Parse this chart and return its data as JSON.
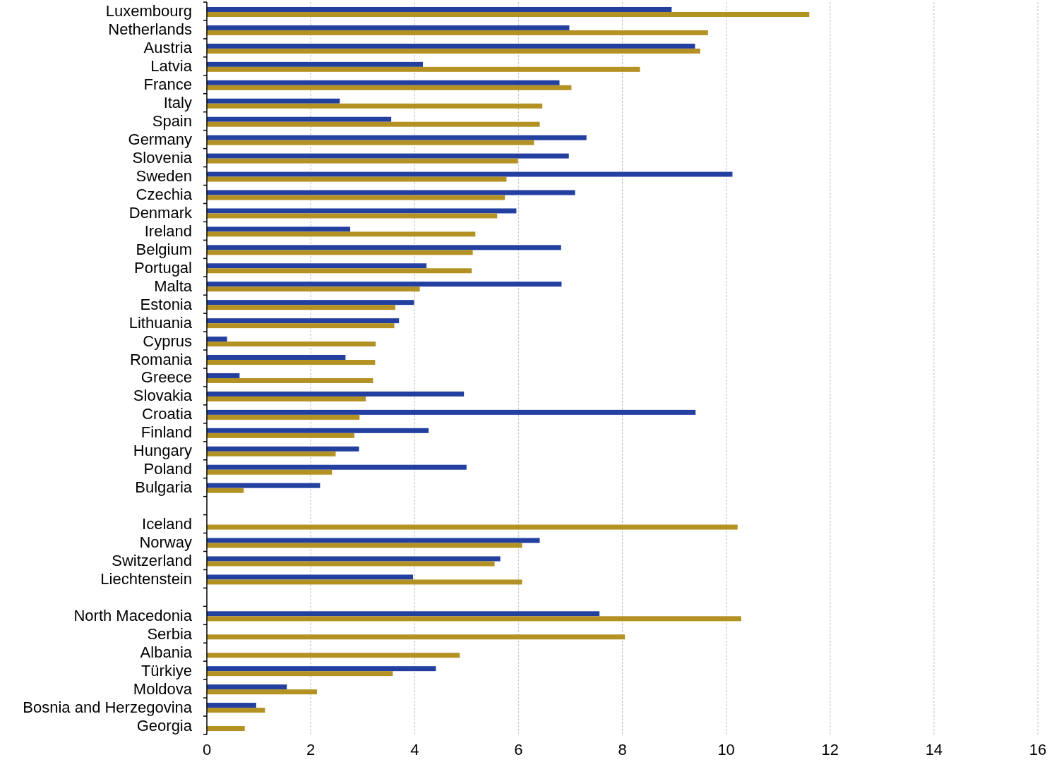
{
  "chart_data": {
    "type": "bar",
    "orientation": "horizontal",
    "categories": [
      "Luxembourg",
      "Netherlands",
      "Austria",
      "Latvia",
      "France",
      "Italy",
      "Spain",
      "Germany",
      "Slovenia",
      "Sweden",
      "Czechia",
      "Denmark",
      "Ireland",
      "Belgium",
      "Portugal",
      "Malta",
      "Estonia",
      "Lithuania",
      "Cyprus",
      "Romania",
      "Greece",
      "Slovakia",
      "Croatia",
      "Finland",
      "Hungary",
      "Poland",
      "Bulgaria",
      null,
      "Iceland",
      "Norway",
      "Switzerland",
      "Liechtenstein",
      null,
      "North Macedonia",
      "Serbia",
      "Albania",
      "Türkiye",
      "Moldova",
      "Bosnia and Herzegovina",
      "Georgia"
    ],
    "series": [
      {
        "color": "#2340a0",
        "values": [
          8.95,
          6.98,
          9.4,
          4.16,
          6.79,
          2.56,
          3.55,
          7.31,
          6.97,
          10.12,
          7.09,
          5.96,
          2.76,
          6.82,
          4.23,
          6.83,
          3.99,
          3.7,
          0.39,
          2.67,
          0.63,
          4.95,
          9.41,
          4.27,
          2.93,
          5.0,
          2.18,
          null,
          null,
          6.41,
          5.65,
          3.97,
          null,
          7.56,
          null,
          null,
          4.41,
          1.54,
          0.95,
          null
        ]
      },
      {
        "color": "#b39223",
        "values": [
          11.6,
          9.65,
          9.5,
          8.34,
          7.02,
          6.46,
          6.41,
          6.3,
          5.99,
          5.77,
          5.74,
          5.59,
          5.17,
          5.12,
          5.1,
          4.1,
          3.63,
          3.61,
          3.25,
          3.24,
          3.2,
          3.06,
          2.94,
          2.84,
          2.48,
          2.41,
          0.71,
          null,
          10.22,
          6.07,
          5.54,
          6.07,
          null,
          10.29,
          8.05,
          4.87,
          3.58,
          2.12,
          1.12,
          0.73
        ]
      }
    ],
    "xlim": [
      0,
      16
    ],
    "xticks": [
      0,
      2,
      4,
      6,
      8,
      10,
      12,
      14,
      16
    ],
    "grid": "x"
  }
}
